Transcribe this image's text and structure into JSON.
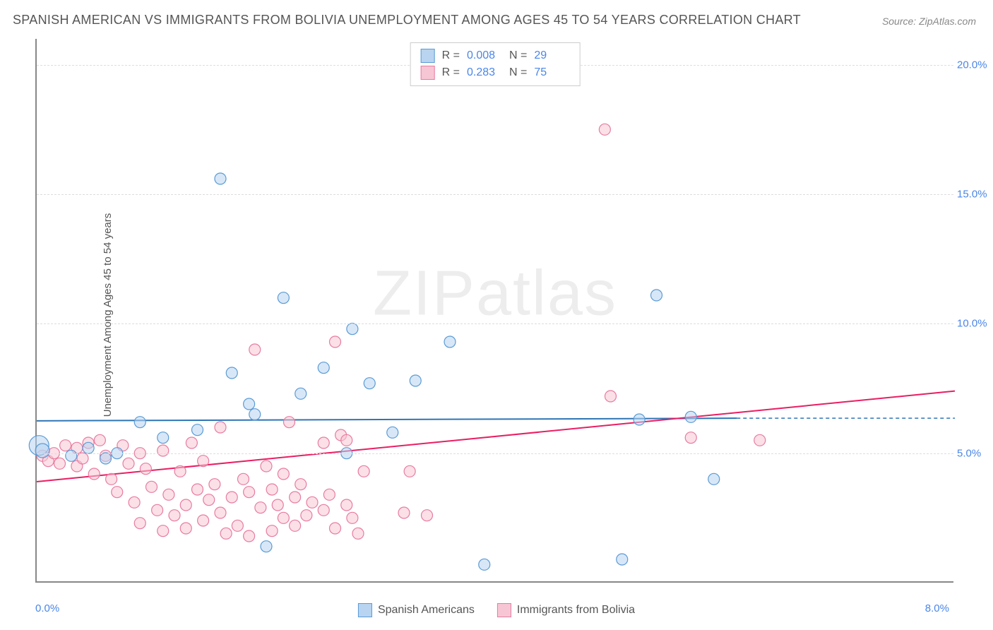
{
  "title": "SPANISH AMERICAN VS IMMIGRANTS FROM BOLIVIA UNEMPLOYMENT AMONG AGES 45 TO 54 YEARS CORRELATION CHART",
  "source": "Source: ZipAtlas.com",
  "y_axis_label": "Unemployment Among Ages 45 to 54 years",
  "x_left_label": "0.0%",
  "x_right_label": "8.0%",
  "watermark": "ZIPatlas",
  "chart": {
    "type": "scatter",
    "background_color": "#ffffff",
    "grid_color": "#dddddd",
    "axis_color": "#888888",
    "xlim": [
      0,
      8
    ],
    "ylim": [
      0,
      21
    ],
    "y_ticks": [
      {
        "value": 5.0,
        "label": "5.0%"
      },
      {
        "value": 10.0,
        "label": "10.0%"
      },
      {
        "value": 15.0,
        "label": "15.0%"
      },
      {
        "value": 20.0,
        "label": "20.0%"
      }
    ],
    "y_dashed_gridlines": [
      5,
      10,
      15,
      20,
      6.3
    ],
    "series": [
      {
        "name": "Spanish Americans",
        "fill": "#b8d4f0",
        "stroke": "#5a9bd5",
        "fill_opacity": 0.55,
        "marker_radius": 8,
        "line_color": "#2e75b6",
        "line_width": 2,
        "trend": {
          "x1": 0,
          "y1": 6.25,
          "x2": 6.1,
          "y2": 6.35
        },
        "points": [
          [
            0.02,
            5.3,
            14
          ],
          [
            0.05,
            5.1,
            10
          ],
          [
            0.3,
            4.9,
            8
          ],
          [
            0.45,
            5.2,
            8
          ],
          [
            0.6,
            4.8,
            8
          ],
          [
            0.7,
            5.0,
            8
          ],
          [
            0.9,
            6.2,
            8
          ],
          [
            1.1,
            5.6,
            8
          ],
          [
            1.4,
            5.9,
            8
          ],
          [
            1.6,
            15.6,
            8
          ],
          [
            1.7,
            8.1,
            8
          ],
          [
            1.85,
            6.9,
            8
          ],
          [
            1.9,
            6.5,
            8
          ],
          [
            2.0,
            1.4,
            8
          ],
          [
            2.15,
            11.0,
            8
          ],
          [
            2.3,
            7.3,
            8
          ],
          [
            2.5,
            8.3,
            8
          ],
          [
            2.7,
            5.0,
            8
          ],
          [
            2.75,
            9.8,
            8
          ],
          [
            2.9,
            7.7,
            8
          ],
          [
            3.1,
            5.8,
            8
          ],
          [
            3.3,
            7.8,
            8
          ],
          [
            3.6,
            9.3,
            8
          ],
          [
            3.9,
            0.7,
            8
          ],
          [
            5.1,
            0.9,
            8
          ],
          [
            5.25,
            6.3,
            8
          ],
          [
            5.4,
            11.1,
            8
          ],
          [
            5.7,
            6.4,
            8
          ],
          [
            5.9,
            4.0,
            8
          ]
        ]
      },
      {
        "name": "Immigrants from Bolivia",
        "fill": "#f7c6d4",
        "stroke": "#e87ba0",
        "fill_opacity": 0.55,
        "marker_radius": 8,
        "line_color": "#e91e63",
        "line_width": 2,
        "trend": {
          "x1": 0,
          "y1": 3.9,
          "x2": 8.0,
          "y2": 7.4
        },
        "points": [
          [
            0.05,
            4.9,
            8
          ],
          [
            0.1,
            4.7,
            8
          ],
          [
            0.15,
            5.0,
            8
          ],
          [
            0.2,
            4.6,
            8
          ],
          [
            0.25,
            5.3,
            8
          ],
          [
            0.35,
            5.2,
            8
          ],
          [
            0.35,
            4.5,
            8
          ],
          [
            0.4,
            4.8,
            8
          ],
          [
            0.45,
            5.4,
            8
          ],
          [
            0.5,
            4.2,
            8
          ],
          [
            0.55,
            5.5,
            8
          ],
          [
            0.6,
            4.9,
            8
          ],
          [
            0.65,
            4.0,
            8
          ],
          [
            0.7,
            3.5,
            8
          ],
          [
            0.75,
            5.3,
            8
          ],
          [
            0.8,
            4.6,
            8
          ],
          [
            0.85,
            3.1,
            8
          ],
          [
            0.9,
            2.3,
            8
          ],
          [
            0.9,
            5.0,
            8
          ],
          [
            0.95,
            4.4,
            8
          ],
          [
            1.0,
            3.7,
            8
          ],
          [
            1.05,
            2.8,
            8
          ],
          [
            1.1,
            5.1,
            8
          ],
          [
            1.1,
            2.0,
            8
          ],
          [
            1.15,
            3.4,
            8
          ],
          [
            1.2,
            2.6,
            8
          ],
          [
            1.25,
            4.3,
            8
          ],
          [
            1.3,
            3.0,
            8
          ],
          [
            1.3,
            2.1,
            8
          ],
          [
            1.35,
            5.4,
            8
          ],
          [
            1.4,
            3.6,
            8
          ],
          [
            1.45,
            2.4,
            8
          ],
          [
            1.45,
            4.7,
            8
          ],
          [
            1.5,
            3.2,
            8
          ],
          [
            1.55,
            3.8,
            8
          ],
          [
            1.6,
            2.7,
            8
          ],
          [
            1.6,
            6.0,
            8
          ],
          [
            1.65,
            1.9,
            8
          ],
          [
            1.7,
            3.3,
            8
          ],
          [
            1.75,
            2.2,
            8
          ],
          [
            1.8,
            4.0,
            8
          ],
          [
            1.85,
            1.8,
            8
          ],
          [
            1.85,
            3.5,
            8
          ],
          [
            1.9,
            9.0,
            8
          ],
          [
            1.95,
            2.9,
            8
          ],
          [
            2.0,
            4.5,
            8
          ],
          [
            2.05,
            2.0,
            8
          ],
          [
            2.05,
            3.6,
            8
          ],
          [
            2.1,
            3.0,
            8
          ],
          [
            2.15,
            2.5,
            8
          ],
          [
            2.15,
            4.2,
            8
          ],
          [
            2.2,
            6.2,
            8
          ],
          [
            2.25,
            3.3,
            8
          ],
          [
            2.25,
            2.2,
            8
          ],
          [
            2.3,
            3.8,
            8
          ],
          [
            2.35,
            2.6,
            8
          ],
          [
            2.4,
            3.1,
            8
          ],
          [
            2.5,
            5.4,
            8
          ],
          [
            2.5,
            2.8,
            8
          ],
          [
            2.55,
            3.4,
            8
          ],
          [
            2.6,
            2.1,
            8
          ],
          [
            2.6,
            9.3,
            8
          ],
          [
            2.65,
            5.7,
            8
          ],
          [
            2.7,
            3.0,
            8
          ],
          [
            2.7,
            5.5,
            8
          ],
          [
            2.75,
            2.5,
            8
          ],
          [
            2.8,
            1.9,
            8
          ],
          [
            2.85,
            4.3,
            8
          ],
          [
            3.2,
            2.7,
            8
          ],
          [
            3.25,
            4.3,
            8
          ],
          [
            3.4,
            2.6,
            8
          ],
          [
            4.95,
            17.5,
            8
          ],
          [
            5.0,
            7.2,
            8
          ],
          [
            5.7,
            5.6,
            8
          ],
          [
            6.3,
            5.5,
            8
          ]
        ]
      }
    ],
    "correlation_box": [
      {
        "swatch_fill": "#b8d4f0",
        "swatch_stroke": "#5a9bd5",
        "r_label": "R =",
        "r_value": "0.008",
        "n_label": "N =",
        "n_value": "29"
      },
      {
        "swatch_fill": "#f7c6d4",
        "swatch_stroke": "#e87ba0",
        "r_label": "R =",
        "r_value": "0.283",
        "n_label": "N =",
        "n_value": "75"
      }
    ],
    "bottom_legend": [
      {
        "swatch_fill": "#b8d4f0",
        "swatch_stroke": "#5a9bd5",
        "label": "Spanish Americans"
      },
      {
        "swatch_fill": "#f7c6d4",
        "swatch_stroke": "#e87ba0",
        "label": "Immigrants from Bolivia"
      }
    ]
  }
}
